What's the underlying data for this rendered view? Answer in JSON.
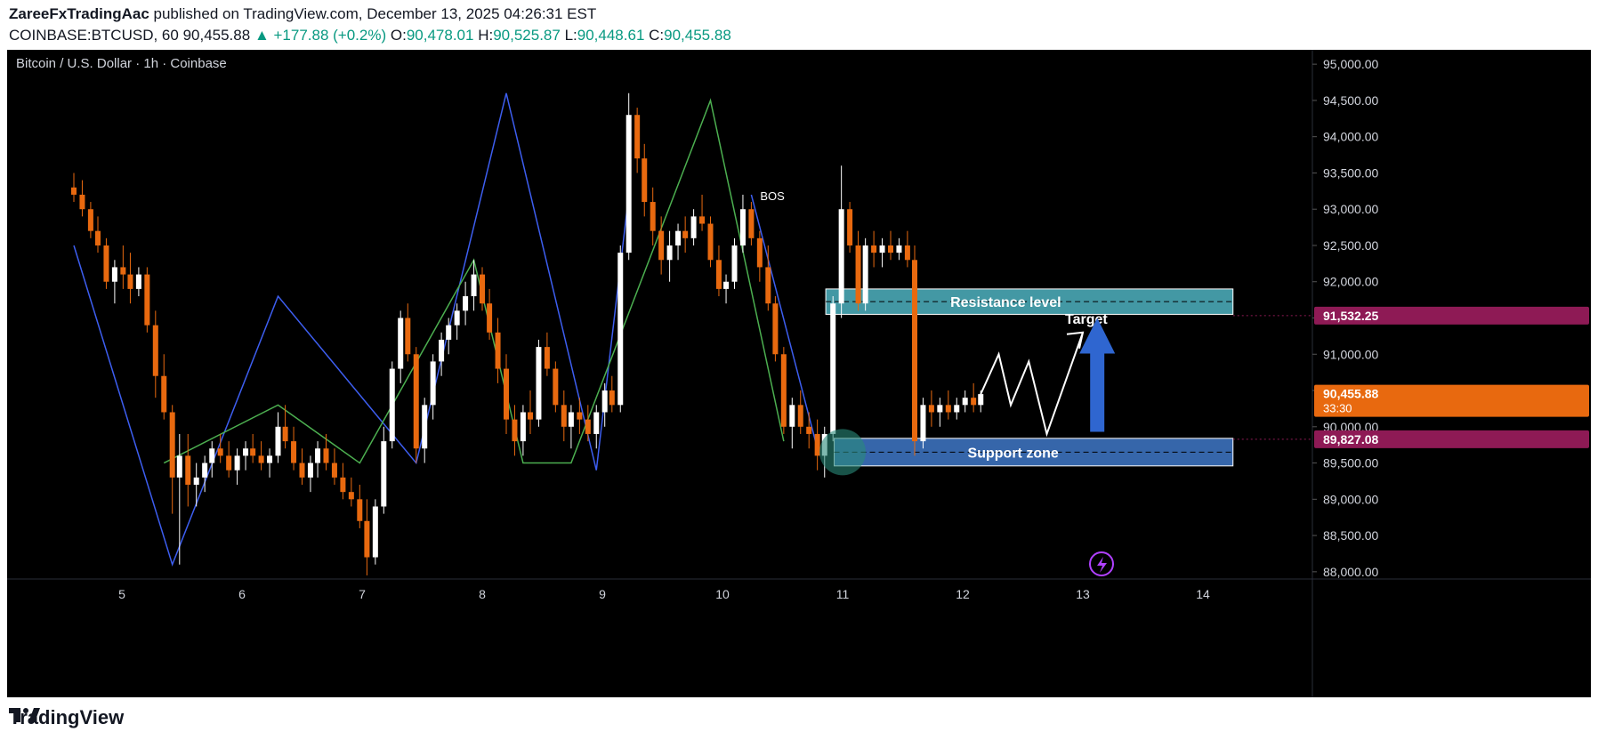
{
  "header": {
    "author": "ZareeFxTradingAac",
    "published_text": "published on TradingView.com, December 13, 2025 04:26:31 EST",
    "symbol": "COINBASE:BTCUSD, 60",
    "price": "90,455.88",
    "change": "▲ +177.88 (+0.2%)",
    "open_label": "O:",
    "open": "90,478.01",
    "high_label": "H:",
    "high": "90,525.87",
    "low_label": "L:",
    "low": "90,448.61",
    "close_label": "C:",
    "close": "90,455.88"
  },
  "footer": {
    "brand": "TradingView"
  },
  "colors": {
    "up": "#ffffff",
    "down": "#e8690f",
    "blue_wave": "#3d5ef0",
    "green_wave": "#4caf50",
    "resistance": "#4fb3c1",
    "support": "#3f78c8",
    "price_tag": "#e8690f",
    "level_tag": "#8e1a55",
    "arrow": "#2f66d0"
  },
  "chart_data": {
    "type": "candlestick",
    "title": "Bitcoin / U.S. Dollar · 1h · Coinbase",
    "y_ticks": [
      "95,000.00",
      "94,500.00",
      "94,000.00",
      "93,500.00",
      "93,000.00",
      "92,500.00",
      "92,000.00",
      "91,500.00",
      "91,000.00",
      "90,500.00",
      "90,000.00",
      "89,500.00",
      "89,000.00",
      "88,500.00",
      "88,000.00"
    ],
    "x_ticks": [
      "5",
      "6",
      "7",
      "8",
      "9",
      "10",
      "11",
      "12",
      "13",
      "14"
    ],
    "ylim": [
      87900,
      95100
    ],
    "price_labels": [
      {
        "value": 91532.25,
        "text": "91,532.25"
      },
      {
        "value": 90455.88,
        "text": "90,455.88",
        "sub": "33:30"
      },
      {
        "value": 89827.08,
        "text": "89,827.08"
      }
    ],
    "zones": [
      {
        "name": "Resistance level",
        "from": 91550,
        "to": 91900,
        "x_start": 10.86,
        "x_end": 14.25
      },
      {
        "name": "Support zone",
        "from": 89460,
        "to": 89840,
        "x_start": 10.93,
        "x_end": 14.25
      }
    ],
    "annotations": {
      "bos": "BOS",
      "target": "Target"
    },
    "candles": [
      [
        4.6,
        93300,
        93500,
        93100,
        93200
      ],
      [
        4.67,
        93200,
        93400,
        92900,
        93000
      ],
      [
        4.74,
        93000,
        93100,
        92600,
        92700
      ],
      [
        4.8,
        92700,
        92900,
        92400,
        92500
      ],
      [
        4.87,
        92500,
        92600,
        91900,
        92000
      ],
      [
        4.94,
        92000,
        92300,
        91700,
        92200
      ],
      [
        5.01,
        92200,
        92500,
        91900,
        92100
      ],
      [
        5.07,
        92100,
        92400,
        91700,
        91900
      ],
      [
        5.14,
        91900,
        92200,
        91800,
        92100
      ],
      [
        5.21,
        92100,
        92200,
        91300,
        91400
      ],
      [
        5.28,
        91400,
        91600,
        90400,
        90700
      ],
      [
        5.35,
        90700,
        91000,
        90100,
        90200
      ],
      [
        5.42,
        90200,
        90300,
        88800,
        89300
      ],
      [
        5.48,
        89300,
        89900,
        88100,
        89600
      ],
      [
        5.55,
        89600,
        89900,
        88900,
        89200
      ],
      [
        5.62,
        89200,
        89500,
        88900,
        89300
      ],
      [
        5.69,
        89300,
        89600,
        89100,
        89500
      ],
      [
        5.75,
        89500,
        89800,
        89300,
        89700
      ],
      [
        5.82,
        89700,
        89900,
        89500,
        89600
      ],
      [
        5.89,
        89600,
        89800,
        89300,
        89400
      ],
      [
        5.96,
        89400,
        89700,
        89200,
        89600
      ],
      [
        6.03,
        89600,
        89800,
        89400,
        89700
      ],
      [
        6.09,
        89700,
        89900,
        89500,
        89600
      ],
      [
        6.16,
        89600,
        89800,
        89400,
        89500
      ],
      [
        6.23,
        89500,
        89700,
        89300,
        89600
      ],
      [
        6.3,
        89600,
        90200,
        89500,
        90000
      ],
      [
        6.36,
        90000,
        90300,
        89700,
        89800
      ],
      [
        6.43,
        89800,
        90000,
        89400,
        89500
      ],
      [
        6.5,
        89500,
        89700,
        89200,
        89300
      ],
      [
        6.57,
        89300,
        89600,
        89100,
        89500
      ],
      [
        6.63,
        89500,
        89800,
        89300,
        89700
      ],
      [
        6.7,
        89700,
        89900,
        89400,
        89500
      ],
      [
        6.77,
        89500,
        89700,
        89200,
        89300
      ],
      [
        6.84,
        89300,
        89500,
        89000,
        89100
      ],
      [
        6.91,
        89100,
        89300,
        88900,
        89000
      ],
      [
        6.98,
        89000,
        89200,
        88600,
        88700
      ],
      [
        7.04,
        88700,
        89000,
        87950,
        88200
      ],
      [
        7.11,
        88200,
        89000,
        88100,
        88900
      ],
      [
        7.18,
        88900,
        90000,
        88800,
        89800
      ],
      [
        7.25,
        89800,
        90900,
        89700,
        90800
      ],
      [
        7.32,
        90800,
        91600,
        90600,
        91500
      ],
      [
        7.38,
        91500,
        91700,
        90900,
        91000
      ],
      [
        7.45,
        91000,
        91100,
        89500,
        89700
      ],
      [
        7.52,
        89700,
        90400,
        89500,
        90300
      ],
      [
        7.59,
        90300,
        91000,
        90100,
        90900
      ],
      [
        7.66,
        90900,
        91300,
        90700,
        91200
      ],
      [
        7.72,
        91200,
        91500,
        91000,
        91400
      ],
      [
        7.79,
        91400,
        91700,
        91200,
        91600
      ],
      [
        7.86,
        91600,
        92000,
        91400,
        91800
      ],
      [
        7.93,
        91800,
        92300,
        91600,
        92100
      ],
      [
        8.0,
        92100,
        92200,
        91600,
        91700
      ],
      [
        8.06,
        91700,
        91900,
        91200,
        91300
      ],
      [
        8.13,
        91300,
        91500,
        90600,
        90800
      ],
      [
        8.2,
        90800,
        91000,
        89900,
        90100
      ],
      [
        8.27,
        90100,
        90300,
        89600,
        89800
      ],
      [
        8.34,
        89800,
        90300,
        89600,
        90200
      ],
      [
        8.4,
        90200,
        90500,
        89900,
        90100
      ],
      [
        8.47,
        90100,
        91200,
        90000,
        91100
      ],
      [
        8.54,
        91100,
        91300,
        90700,
        90800
      ],
      [
        8.61,
        90800,
        90900,
        90200,
        90300
      ],
      [
        8.68,
        90300,
        90500,
        89800,
        90000
      ],
      [
        8.74,
        90000,
        90300,
        89700,
        90200
      ],
      [
        8.81,
        90200,
        90400,
        89900,
        90100
      ],
      [
        8.88,
        90100,
        90300,
        89800,
        89900
      ],
      [
        8.95,
        89900,
        90300,
        89700,
        90200
      ],
      [
        9.02,
        90200,
        90600,
        90000,
        90500
      ],
      [
        9.08,
        90500,
        90700,
        90200,
        90300
      ],
      [
        9.15,
        90300,
        92500,
        90200,
        92400
      ],
      [
        9.22,
        92400,
        94600,
        92300,
        94300
      ],
      [
        9.29,
        94300,
        94400,
        93500,
        93700
      ],
      [
        9.35,
        93700,
        93900,
        92900,
        93100
      ],
      [
        9.42,
        93100,
        93300,
        92500,
        92700
      ],
      [
        9.49,
        92700,
        92900,
        92100,
        92300
      ],
      [
        9.56,
        92300,
        92700,
        92000,
        92500
      ],
      [
        9.63,
        92500,
        92800,
        92300,
        92700
      ],
      [
        9.69,
        92700,
        92900,
        92400,
        92600
      ],
      [
        9.76,
        92600,
        93000,
        92500,
        92900
      ],
      [
        9.83,
        92900,
        93200,
        92700,
        92800
      ],
      [
        9.9,
        92800,
        92900,
        92200,
        92300
      ],
      [
        9.97,
        92300,
        92500,
        91800,
        91900
      ],
      [
        10.03,
        91900,
        92100,
        91700,
        92000
      ],
      [
        10.1,
        92000,
        92600,
        91900,
        92500
      ],
      [
        10.17,
        92500,
        93200,
        92400,
        93000
      ],
      [
        10.24,
        93000,
        93100,
        92500,
        92600
      ],
      [
        10.31,
        92600,
        92700,
        92000,
        92200
      ],
      [
        10.38,
        92200,
        92500,
        91600,
        91700
      ],
      [
        10.44,
        91700,
        91800,
        90900,
        91000
      ],
      [
        10.51,
        91000,
        91100,
        89900,
        90000
      ],
      [
        10.58,
        90000,
        90400,
        89700,
        90300
      ],
      [
        10.65,
        90300,
        90500,
        89900,
        90000
      ],
      [
        10.72,
        90000,
        90200,
        89700,
        89900
      ],
      [
        10.79,
        89900,
        90100,
        89400,
        89600
      ],
      [
        10.85,
        89600,
        90000,
        89300,
        89900
      ],
      [
        10.92,
        89900,
        91800,
        89800,
        91700
      ],
      [
        10.99,
        91700,
        93600,
        91500,
        93000
      ],
      [
        11.06,
        93000,
        93100,
        92400,
        92500
      ],
      [
        11.13,
        92500,
        92700,
        91600,
        91700
      ],
      [
        11.19,
        91700,
        92600,
        91600,
        92500
      ],
      [
        11.26,
        92500,
        92700,
        92200,
        92400
      ],
      [
        11.33,
        92400,
        92600,
        92200,
        92500
      ],
      [
        11.4,
        92500,
        92700,
        92300,
        92400
      ],
      [
        11.47,
        92400,
        92600,
        92300,
        92500
      ],
      [
        11.54,
        92500,
        92700,
        92200,
        92300
      ],
      [
        11.6,
        92300,
        92500,
        89600,
        89800
      ],
      [
        11.67,
        89800,
        90400,
        89700,
        90300
      ],
      [
        11.74,
        90300,
        90500,
        90000,
        90200
      ],
      [
        11.81,
        90200,
        90400,
        90000,
        90300
      ],
      [
        11.88,
        90300,
        90500,
        90100,
        90200
      ],
      [
        11.95,
        90200,
        90400,
        90100,
        90300
      ],
      [
        12.02,
        90300,
        90500,
        90200,
        90400
      ],
      [
        12.09,
        90400,
        90600,
        90200,
        90300
      ],
      [
        12.15,
        90300,
        90500,
        90200,
        90450
      ]
    ],
    "blue_wave": [
      [
        4.6,
        92500
      ],
      [
        5.42,
        88100
      ],
      [
        6.3,
        91800
      ],
      [
        7.45,
        89500
      ],
      [
        8.2,
        94600
      ],
      [
        8.95,
        89400
      ],
      [
        9.22,
        93200
      ]
    ],
    "green_wave": [
      [
        5.35,
        89500
      ],
      [
        6.3,
        90300
      ],
      [
        6.98,
        89500
      ],
      [
        7.93,
        92300
      ],
      [
        8.34,
        89500
      ],
      [
        8.74,
        89500
      ],
      [
        9.9,
        94500
      ],
      [
        10.51,
        89800
      ]
    ],
    "projection": [
      [
        12.15,
        90450
      ],
      [
        12.3,
        91000
      ],
      [
        12.4,
        90300
      ],
      [
        12.55,
        90900
      ],
      [
        12.7,
        89900
      ],
      [
        13.0,
        91300
      ]
    ],
    "zone_blue_extra": [
      [
        10.24,
        93200
      ],
      [
        10.79,
        89700
      ]
    ]
  }
}
